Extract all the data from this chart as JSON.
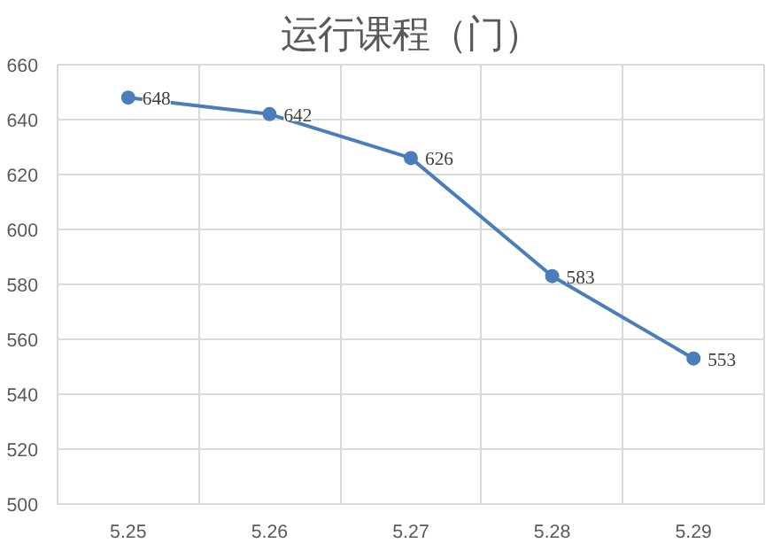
{
  "chart_data": {
    "type": "line",
    "title": "运行课程（门）",
    "categories": [
      "5.25",
      "5.26",
      "5.27",
      "5.28",
      "5.29"
    ],
    "series": [
      {
        "color": "#4a7ebb",
        "values": [
          648,
          642,
          626,
          583,
          553
        ]
      }
    ],
    "ylim": [
      500,
      660
    ],
    "yticks": [
      500,
      520,
      540,
      560,
      580,
      600,
      620,
      640,
      660
    ],
    "grid": true,
    "marker": "circle",
    "line_style": "solid",
    "data_labels": true
  }
}
